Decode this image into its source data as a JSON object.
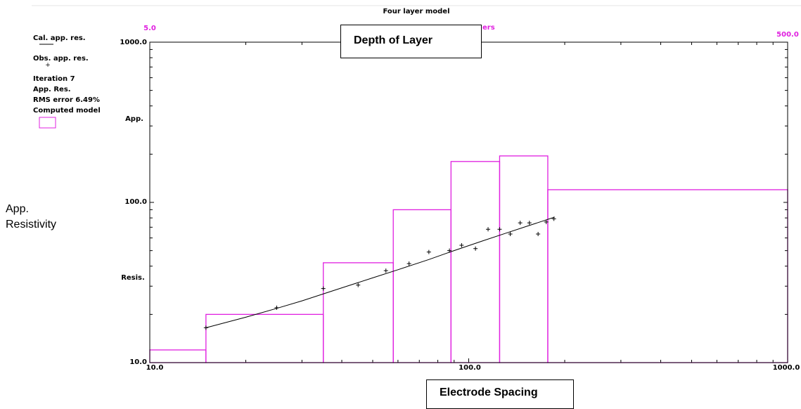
{
  "chart_data": {
    "type": "line",
    "title": "Four layer model",
    "x_scale": "log",
    "y_scale": "log",
    "xlim": [
      10,
      1000
    ],
    "ylim": [
      10,
      1000
    ],
    "x_tick_labels": [
      "10.0",
      "100.0",
      "1000.0"
    ],
    "y_tick_labels": [
      "10.0",
      "100.0",
      "1000.0"
    ],
    "y_axis_text": [
      "App.",
      "Resis."
    ],
    "top_axis_left_label": "5.0",
    "top_axis_right_label": "500.0",
    "top_axis_partial_label": "ers",
    "legend": {
      "cal_label": "Cal. app. res.",
      "obs_label": "Obs. app. res.",
      "iteration": "Iteration 7",
      "app_res": "App. Res.",
      "rms": "RMS error 6.49%",
      "model_label": "Computed model"
    },
    "series": [
      {
        "name": "Cal. app. res.",
        "x": [
          15,
          20,
          25,
          30,
          40,
          50,
          60,
          75,
          90,
          110,
          130,
          150,
          170,
          186
        ],
        "y": [
          16.5,
          19.2,
          21.8,
          24.3,
          29.3,
          33.8,
          38.0,
          44.0,
          50.0,
          57.3,
          64.0,
          70.3,
          76.3,
          81.0
        ]
      },
      {
        "name": "Obs. app. res.",
        "x": [
          15,
          25,
          35,
          45,
          55,
          65,
          75,
          87,
          95,
          105,
          115,
          125,
          135,
          145,
          155,
          165,
          175,
          185
        ],
        "y": [
          16.5,
          22.0,
          29.0,
          30.5,
          37.5,
          41.5,
          49.0,
          50.0,
          54.0,
          51.5,
          68.0,
          68.0,
          63.5,
          74.5,
          74.5,
          63.5,
          75.5,
          79.0
        ]
      }
    ],
    "model_layers": [
      {
        "x_start": 10,
        "x_end": 15,
        "rho": 12
      },
      {
        "x_start": 15,
        "x_end": 35,
        "rho": 20
      },
      {
        "x_start": 35,
        "x_end": 58,
        "rho": 42
      },
      {
        "x_start": 58,
        "x_end": 88,
        "rho": 90
      },
      {
        "x_start": 88,
        "x_end": 125,
        "rho": 180
      },
      {
        "x_start": 125,
        "x_end": 177,
        "rho": 195
      },
      {
        "x_start": 177,
        "x_end": 1000,
        "rho": 120
      }
    ],
    "colors": {
      "model": "#e020e0",
      "curve": "#000000",
      "axis": "#000000"
    }
  },
  "annotations": {
    "depth_of_layer": "Depth of Layer",
    "electrode_spacing": "Electrode Spacing",
    "app_resistivity_line1": "App.",
    "app_resistivity_line2": "Resistivity"
  }
}
